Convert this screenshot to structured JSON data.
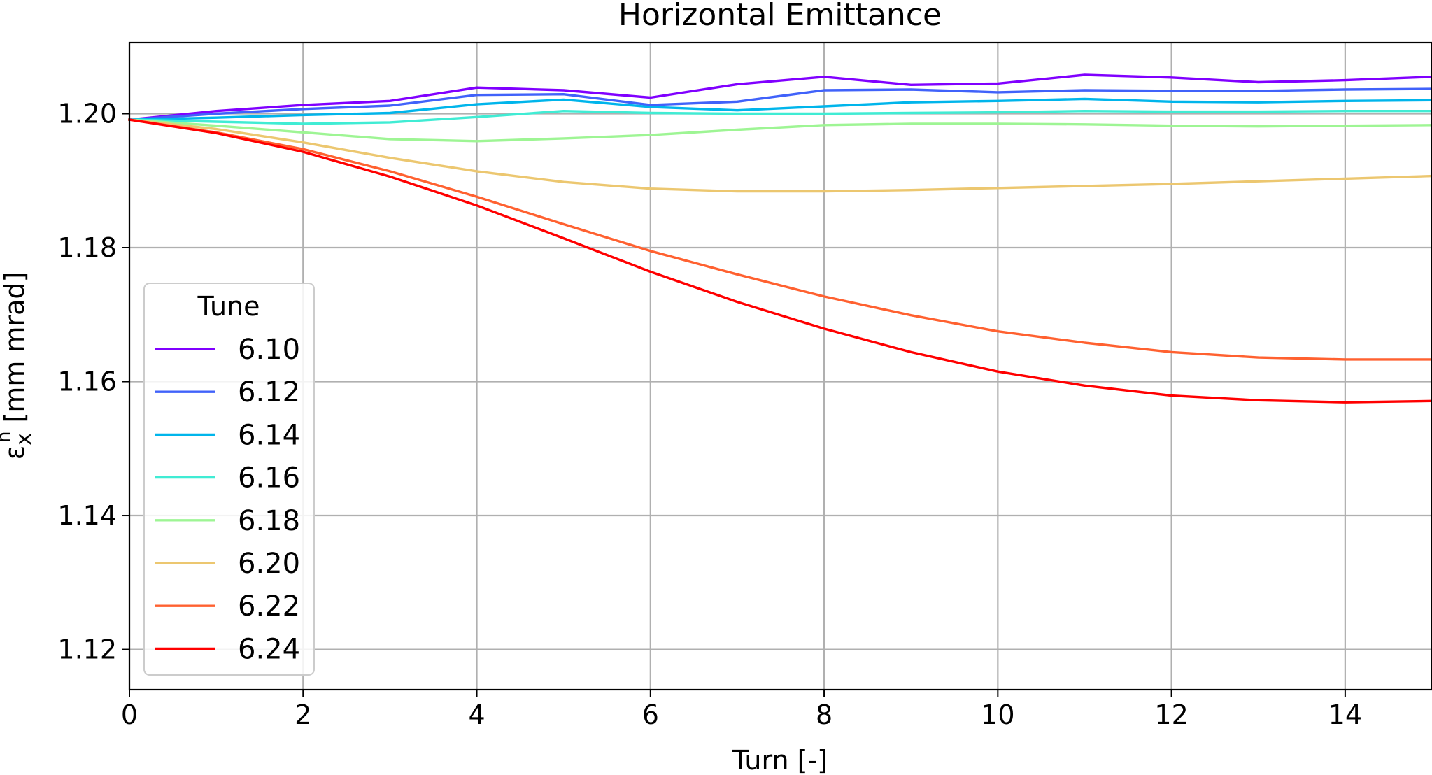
{
  "chart_data": {
    "type": "line",
    "title": "Horizontal Emittance",
    "xlabel": "Turn [-]",
    "ylabel_symbol": "ε",
    "ylabel_sub": "x",
    "ylabel_sup": "n",
    "ylabel_unit": " [mm mrad]",
    "xlim": [
      0,
      15
    ],
    "ylim": [
      1.114,
      1.2106
    ],
    "xticks": [
      0,
      2,
      4,
      6,
      8,
      10,
      12,
      14
    ],
    "xtick_labels": [
      "0",
      "2",
      "4",
      "6",
      "8",
      "10",
      "12",
      "14"
    ],
    "yticks": [
      1.12,
      1.14,
      1.16,
      1.18,
      1.2
    ],
    "ytick_labels": [
      "1.12",
      "1.14",
      "1.16",
      "1.18",
      "1.20"
    ],
    "grid": true,
    "legend": {
      "title": "Tune",
      "placement": "center-left"
    },
    "x": [
      0,
      1,
      2,
      3,
      4,
      5,
      6,
      7,
      8,
      9,
      10,
      11,
      12,
      13,
      14,
      15
    ],
    "series": [
      {
        "name": "6.10",
        "color": "#8000ff",
        "values": [
          1.1991,
          1.2004,
          1.2013,
          1.2019,
          1.2039,
          1.2035,
          1.2024,
          1.2044,
          1.2055,
          1.2043,
          1.2045,
          1.2058,
          1.2054,
          1.2047,
          1.205,
          1.2055
        ]
      },
      {
        "name": "6.12",
        "color": "#4062fa",
        "values": [
          1.1991,
          1.2,
          1.2007,
          1.2012,
          1.2028,
          1.2029,
          1.2013,
          1.2018,
          1.2035,
          1.2036,
          1.2032,
          1.2035,
          1.2034,
          1.2034,
          1.2036,
          1.2037
        ]
      },
      {
        "name": "6.14",
        "color": "#00b5eb",
        "values": [
          1.1991,
          1.1994,
          1.1998,
          1.2001,
          1.2014,
          1.2021,
          1.201,
          1.2005,
          1.2011,
          1.2017,
          1.2019,
          1.2022,
          1.2018,
          1.2017,
          1.2019,
          1.202
        ]
      },
      {
        "name": "6.16",
        "color": "#40ecd4",
        "values": [
          1.1991,
          1.1988,
          1.1985,
          1.1987,
          1.1995,
          1.2004,
          1.2001,
          1.2,
          1.2,
          1.2001,
          1.2002,
          1.2004,
          1.2003,
          1.2003,
          1.2004,
          1.2004
        ]
      },
      {
        "name": "6.18",
        "color": "#9ef594",
        "values": [
          1.1991,
          1.1982,
          1.1972,
          1.1962,
          1.1959,
          1.1963,
          1.1968,
          1.1976,
          1.1983,
          1.1985,
          1.1985,
          1.1984,
          1.1982,
          1.1981,
          1.1982,
          1.1983
        ]
      },
      {
        "name": "6.20",
        "color": "#ecc770",
        "values": [
          1.1991,
          1.1977,
          1.1957,
          1.1934,
          1.1914,
          1.1898,
          1.1888,
          1.1884,
          1.1884,
          1.1886,
          1.1889,
          1.1892,
          1.1895,
          1.1899,
          1.1903,
          1.1907
        ]
      },
      {
        "name": "6.22",
        "color": "#ff6130",
        "values": [
          1.1991,
          1.1972,
          1.1947,
          1.1914,
          1.1876,
          1.1835,
          1.1795,
          1.176,
          1.1727,
          1.1699,
          1.1675,
          1.1658,
          1.1644,
          1.1636,
          1.1633,
          1.1633
        ]
      },
      {
        "name": "6.24",
        "color": "#ff0000",
        "values": [
          1.1991,
          1.1971,
          1.1943,
          1.1906,
          1.1863,
          1.1814,
          1.1764,
          1.1719,
          1.1679,
          1.1644,
          1.1615,
          1.1594,
          1.1579,
          1.1572,
          1.1569,
          1.1571
        ]
      }
    ]
  }
}
